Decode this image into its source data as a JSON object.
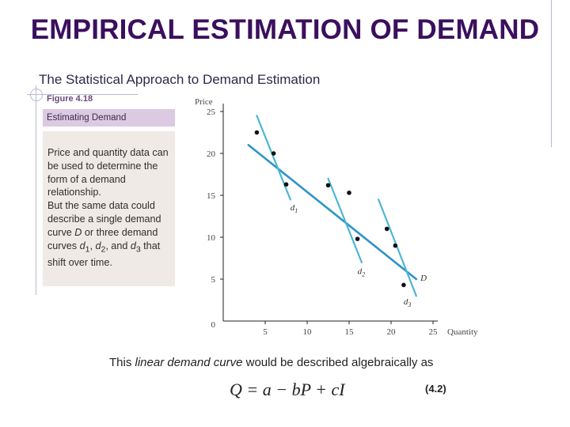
{
  "title": "EMPIRICAL ESTIMATION OF DEMAND",
  "subtitle": "The Statistical Approach to Demand Estimation",
  "figure": {
    "label": "Figure 4.18",
    "caption": "Estimating Demand",
    "description_1": "Price and quantity data can be used to determine the form of a demand relationship.",
    "description_2_parts": [
      "But the same data could describe a single demand curve ",
      "D",
      " or three demand curves ",
      "d",
      "1",
      ", ",
      "d",
      "2",
      ", and ",
      "d",
      "3",
      " that shift over time."
    ]
  },
  "bottom_text": {
    "before": "This ",
    "emphasis": "linear demand curve",
    "after": " would be described algebraically as"
  },
  "equation": "Q = a − bP + cI",
  "equation_number": "(4.2)",
  "colors": {
    "title": "#3b0f5e",
    "curve": "#2f93c6",
    "curve_light": "#4db6d6",
    "points": "#111111"
  },
  "chart_data": {
    "type": "scatter",
    "xlabel": "Quantity",
    "ylabel": "Price",
    "xlim": [
      0,
      25
    ],
    "ylim": [
      0,
      25
    ],
    "x_ticks": [
      "5",
      "10",
      "15",
      "20",
      "25"
    ],
    "y_ticks": [
      "0",
      "5",
      "10",
      "15",
      "20",
      "25"
    ],
    "points": [
      {
        "x": 4,
        "y": 22.5
      },
      {
        "x": 6,
        "y": 20
      },
      {
        "x": 7.5,
        "y": 16.3
      },
      {
        "x": 12.5,
        "y": 16.2
      },
      {
        "x": 15,
        "y": 15.3
      },
      {
        "x": 16,
        "y": 9.8
      },
      {
        "x": 19.5,
        "y": 11
      },
      {
        "x": 20.5,
        "y": 9
      },
      {
        "x": 21.5,
        "y": 4.3
      }
    ],
    "lines": [
      {
        "name": "D",
        "x": [
          3,
          23
        ],
        "y": [
          21,
          5
        ]
      },
      {
        "name": "d1",
        "x": [
          4,
          8
        ],
        "y": [
          24.5,
          14.5
        ]
      },
      {
        "name": "d2",
        "x": [
          12.5,
          16.5
        ],
        "y": [
          17,
          7
        ]
      },
      {
        "name": "d3",
        "x": [
          18.5,
          23
        ],
        "y": [
          14.5,
          3
        ]
      }
    ],
    "line_labels": [
      {
        "text": "d",
        "sub": "1",
        "x": 8,
        "y": 13.2
      },
      {
        "text": "d",
        "sub": "2",
        "x": 16,
        "y": 5.6
      },
      {
        "text": "d",
        "sub": "3",
        "x": 21.5,
        "y": 2
      },
      {
        "text": "D",
        "sub": "",
        "x": 23.5,
        "y": 4.8
      }
    ],
    "grid": false
  }
}
